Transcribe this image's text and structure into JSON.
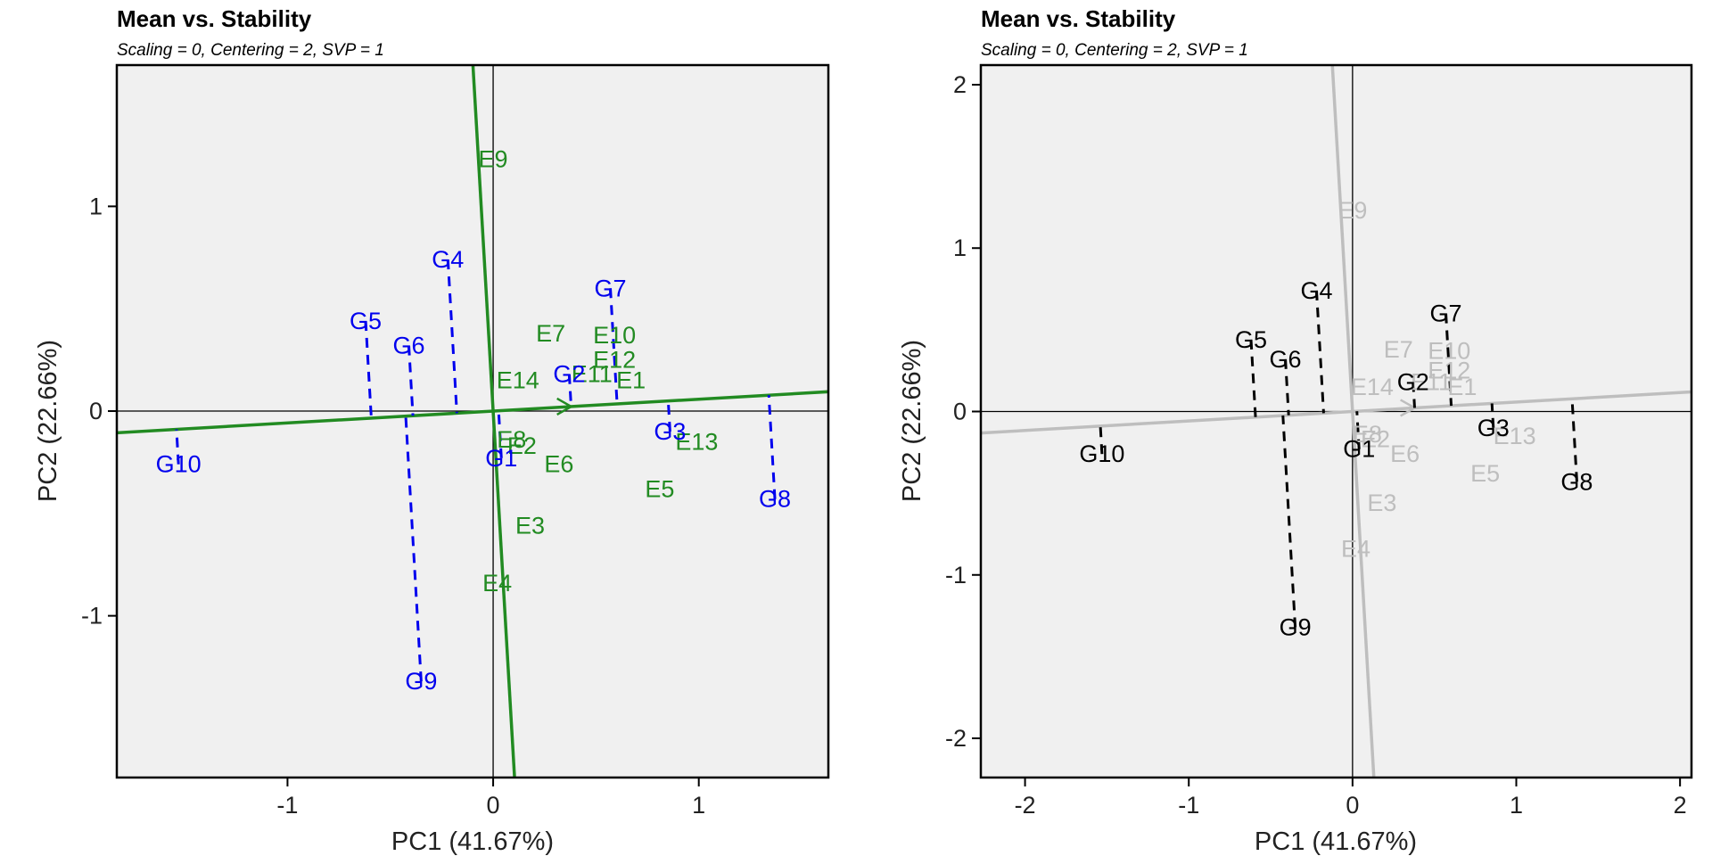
{
  "chart_data": [
    {
      "type": "scatter",
      "title": "Mean vs. Stability",
      "subtitle": "Scaling = 0, Centering = 2, SVP = 1",
      "xlabel": "PC1 (41.67%)",
      "ylabel": "PC2 (22.66%)",
      "xlim": [
        -1.83,
        1.63
      ],
      "ylim": [
        -1.79,
        1.69
      ],
      "xticks": [
        -1,
        0,
        1
      ],
      "yticks": [
        -1,
        0,
        1
      ],
      "genotype_color": "#0000ee",
      "environment_color": "#228b22",
      "aec_color": "#228b22",
      "genotypes": [
        {
          "label": "G1",
          "x": 0.04,
          "y": -0.23
        },
        {
          "label": "G2",
          "x": 0.37,
          "y": 0.18
        },
        {
          "label": "G3",
          "x": 0.86,
          "y": -0.1
        },
        {
          "label": "G4",
          "x": -0.22,
          "y": 0.74
        },
        {
          "label": "G5",
          "x": -0.62,
          "y": 0.44
        },
        {
          "label": "G6",
          "x": -0.41,
          "y": 0.32
        },
        {
          "label": "G7",
          "x": 0.57,
          "y": 0.6
        },
        {
          "label": "G8",
          "x": 1.37,
          "y": -0.43
        },
        {
          "label": "G9",
          "x": -0.35,
          "y": -1.32
        },
        {
          "label": "G10",
          "x": -1.53,
          "y": -0.26
        }
      ],
      "environments": [
        {
          "label": "E1",
          "x": 0.67,
          "y": 0.15
        },
        {
          "label": "E2",
          "x": 0.14,
          "y": -0.17
        },
        {
          "label": "E3",
          "x": 0.18,
          "y": -0.56
        },
        {
          "label": "E4",
          "x": 0.02,
          "y": -0.84
        },
        {
          "label": "E5",
          "x": 0.81,
          "y": -0.38
        },
        {
          "label": "E6",
          "x": 0.32,
          "y": -0.26
        },
        {
          "label": "E7",
          "x": 0.28,
          "y": 0.38
        },
        {
          "label": "E8",
          "x": 0.09,
          "y": -0.14
        },
        {
          "label": "E9",
          "x": 0.0,
          "y": 1.23
        },
        {
          "label": "E10",
          "x": 0.59,
          "y": 0.37
        },
        {
          "label": "E11",
          "x": 0.48,
          "y": 0.18
        },
        {
          "label": "E12",
          "x": 0.59,
          "y": 0.25
        },
        {
          "label": "E13",
          "x": 0.99,
          "y": -0.15
        },
        {
          "label": "E14",
          "x": 0.12,
          "y": 0.15
        }
      ],
      "aec": {
        "slope": 0.058,
        "perp_slope": -17.2,
        "arrow_x": 0.38
      }
    },
    {
      "type": "scatter",
      "title": "Mean vs. Stability",
      "subtitle": "Scaling = 0, Centering = 2, SVP = 1",
      "xlabel": "PC1 (41.67%)",
      "ylabel": "PC2 (22.66%)",
      "xlim": [
        -2.27,
        2.07
      ],
      "ylim": [
        -2.24,
        2.12
      ],
      "xticks": [
        -2,
        -1,
        0,
        1,
        2
      ],
      "yticks": [
        -2,
        -1,
        0,
        1,
        2
      ],
      "genotype_color": "#000000",
      "environment_color": "#bebebe",
      "aec_color": "#bebebe",
      "genotypes": [
        {
          "label": "G1",
          "x": 0.04,
          "y": -0.23
        },
        {
          "label": "G2",
          "x": 0.37,
          "y": 0.18
        },
        {
          "label": "G3",
          "x": 0.86,
          "y": -0.1
        },
        {
          "label": "G4",
          "x": -0.22,
          "y": 0.74
        },
        {
          "label": "G5",
          "x": -0.62,
          "y": 0.44
        },
        {
          "label": "G6",
          "x": -0.41,
          "y": 0.32
        },
        {
          "label": "G7",
          "x": 0.57,
          "y": 0.6
        },
        {
          "label": "G8",
          "x": 1.37,
          "y": -0.43
        },
        {
          "label": "G9",
          "x": -0.35,
          "y": -1.32
        },
        {
          "label": "G10",
          "x": -1.53,
          "y": -0.26
        }
      ],
      "environments": [
        {
          "label": "E1",
          "x": 0.67,
          "y": 0.15
        },
        {
          "label": "E2",
          "x": 0.14,
          "y": -0.17
        },
        {
          "label": "E3",
          "x": 0.18,
          "y": -0.56
        },
        {
          "label": "E4",
          "x": 0.02,
          "y": -0.84
        },
        {
          "label": "E5",
          "x": 0.81,
          "y": -0.38
        },
        {
          "label": "E6",
          "x": 0.32,
          "y": -0.26
        },
        {
          "label": "E7",
          "x": 0.28,
          "y": 0.38
        },
        {
          "label": "E8",
          "x": 0.09,
          "y": -0.14
        },
        {
          "label": "E9",
          "x": 0.0,
          "y": 1.23
        },
        {
          "label": "E10",
          "x": 0.59,
          "y": 0.37
        },
        {
          "label": "E11",
          "x": 0.48,
          "y": 0.18
        },
        {
          "label": "E12",
          "x": 0.59,
          "y": 0.25
        },
        {
          "label": "E13",
          "x": 0.99,
          "y": -0.15
        },
        {
          "label": "E14",
          "x": 0.12,
          "y": 0.15
        }
      ],
      "aec": {
        "slope": 0.058,
        "perp_slope": -17.2,
        "arrow_x": 0.38
      }
    }
  ]
}
